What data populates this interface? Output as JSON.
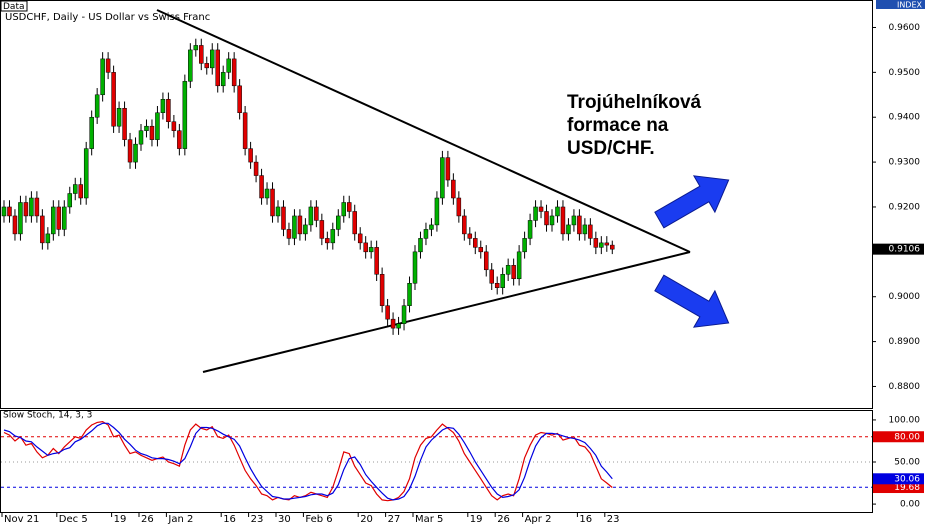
{
  "header": {
    "badge": "Data",
    "index_label": "INDEX"
  },
  "annotation": [
    "Trojúhelníková",
    "formace na",
    "USD/CHF."
  ],
  "chart_data": [
    {
      "type": "candlestick",
      "title": "USDCHF, Daily - US Dollar vs Swiss Franc",
      "up_color": "#00b000",
      "down_color": "#e00000",
      "ylim": [
        0.8752,
        0.9659
      ],
      "yticks": [
        {
          "value": 0.88,
          "label": "0.8800"
        },
        {
          "value": 0.89,
          "label": "0.8900"
        },
        {
          "value": 0.9,
          "label": "0.9000"
        },
        {
          "value": 0.91,
          "label": "0.9100"
        },
        {
          "value": 0.92,
          "label": "0.9200"
        },
        {
          "value": 0.93,
          "label": "0.9300"
        },
        {
          "value": 0.94,
          "label": "0.9400"
        },
        {
          "value": 0.95,
          "label": "0.9500"
        },
        {
          "value": 0.96,
          "label": "0.9600"
        }
      ],
      "open": [
        0.918,
        0.92,
        0.918,
        0.914,
        0.921,
        0.918,
        0.922,
        0.918,
        0.912,
        0.914,
        0.92,
        0.915,
        0.92,
        0.923,
        0.925,
        0.922,
        0.933,
        0.94,
        0.945,
        0.953,
        0.95,
        0.938,
        0.942,
        0.935,
        0.93,
        0.934,
        0.937,
        0.938,
        0.935,
        0.941,
        0.944,
        0.939,
        0.937,
        0.933,
        0.948,
        0.955,
        0.956,
        0.952,
        0.951,
        0.955,
        0.947,
        0.95,
        0.953,
        0.947,
        0.941,
        0.933,
        0.93,
        0.927,
        0.922,
        0.924,
        0.918,
        0.92,
        0.915,
        0.913,
        0.918,
        0.914,
        0.916,
        0.92,
        0.917,
        0.913,
        0.912,
        0.915,
        0.918,
        0.921,
        0.919,
        0.914,
        0.912,
        0.91,
        0.911,
        0.905,
        0.898,
        0.895,
        0.893,
        0.894,
        0.898,
        0.903,
        0.91,
        0.913,
        0.915,
        0.916,
        0.922,
        0.931,
        0.926,
        0.922,
        0.918,
        0.914,
        0.913,
        0.911,
        0.91,
        0.906,
        0.903,
        0.902,
        0.905,
        0.907,
        0.904,
        0.91,
        0.913,
        0.917,
        0.92,
        0.919,
        0.916,
        0.918,
        0.92,
        0.914,
        0.916,
        0.918,
        0.914,
        0.916,
        0.913,
        0.911,
        0.912,
        0.9115
      ],
      "high": [
        0.9215,
        0.9215,
        0.9195,
        0.9225,
        0.9225,
        0.9235,
        0.9235,
        0.9195,
        0.9155,
        0.9215,
        0.9215,
        0.9215,
        0.9245,
        0.9265,
        0.9265,
        0.9345,
        0.9415,
        0.9465,
        0.9545,
        0.9545,
        0.9515,
        0.9435,
        0.9435,
        0.9365,
        0.9355,
        0.9385,
        0.9395,
        0.9395,
        0.9425,
        0.9455,
        0.9455,
        0.9405,
        0.9385,
        0.9495,
        0.9565,
        0.9575,
        0.9575,
        0.9535,
        0.9565,
        0.9565,
        0.9515,
        0.9545,
        0.9545,
        0.9485,
        0.9425,
        0.9345,
        0.9315,
        0.9285,
        0.9255,
        0.9255,
        0.9215,
        0.9215,
        0.9165,
        0.9195,
        0.9195,
        0.9175,
        0.9215,
        0.9215,
        0.9185,
        0.9145,
        0.9165,
        0.9195,
        0.9225,
        0.9225,
        0.9205,
        0.9155,
        0.9135,
        0.9125,
        0.9125,
        0.9065,
        0.8995,
        0.8965,
        0.8955,
        0.8995,
        0.9045,
        0.9115,
        0.9145,
        0.9165,
        0.9175,
        0.9235,
        0.9325,
        0.9325,
        0.9275,
        0.9235,
        0.9195,
        0.9155,
        0.9145,
        0.9125,
        0.9115,
        0.9075,
        0.9045,
        0.9065,
        0.9085,
        0.9085,
        0.9115,
        0.9145,
        0.9185,
        0.9215,
        0.9215,
        0.9205,
        0.9195,
        0.9215,
        0.9215,
        0.9175,
        0.9195,
        0.9195,
        0.9175,
        0.9175,
        0.9145,
        0.9135,
        0.9135,
        0.9125
      ],
      "low": [
        0.9165,
        0.9165,
        0.9125,
        0.9125,
        0.9165,
        0.9165,
        0.9165,
        0.9105,
        0.9105,
        0.9125,
        0.9135,
        0.9135,
        0.9185,
        0.9215,
        0.9205,
        0.9205,
        0.9315,
        0.9385,
        0.9435,
        0.9485,
        0.9365,
        0.9365,
        0.9335,
        0.9285,
        0.9285,
        0.9325,
        0.9355,
        0.9335,
        0.9335,
        0.9395,
        0.9375,
        0.9355,
        0.9315,
        0.9315,
        0.9465,
        0.9535,
        0.9505,
        0.9495,
        0.9495,
        0.9455,
        0.9455,
        0.9485,
        0.9455,
        0.9395,
        0.9315,
        0.9285,
        0.9255,
        0.9205,
        0.9205,
        0.9165,
        0.9165,
        0.9135,
        0.9115,
        0.9115,
        0.9125,
        0.9125,
        0.9145,
        0.9155,
        0.9115,
        0.9105,
        0.9105,
        0.9135,
        0.9165,
        0.9175,
        0.9125,
        0.9105,
        0.9085,
        0.9085,
        0.9035,
        0.8965,
        0.8935,
        0.8915,
        0.8915,
        0.8925,
        0.8965,
        0.9015,
        0.9085,
        0.9115,
        0.9135,
        0.9145,
        0.9205,
        0.9245,
        0.9205,
        0.9165,
        0.9125,
        0.9115,
        0.9095,
        0.9085,
        0.9045,
        0.9015,
        0.9005,
        0.9005,
        0.9035,
        0.9025,
        0.9025,
        0.9085,
        0.9115,
        0.9155,
        0.9175,
        0.9145,
        0.9145,
        0.9165,
        0.9125,
        0.9125,
        0.9145,
        0.9125,
        0.9125,
        0.9115,
        0.9095,
        0.9095,
        0.91,
        0.9095
      ],
      "close": [
        0.92,
        0.918,
        0.914,
        0.921,
        0.918,
        0.922,
        0.918,
        0.912,
        0.914,
        0.92,
        0.915,
        0.92,
        0.923,
        0.925,
        0.922,
        0.933,
        0.94,
        0.945,
        0.953,
        0.95,
        0.938,
        0.942,
        0.935,
        0.93,
        0.934,
        0.937,
        0.938,
        0.935,
        0.941,
        0.944,
        0.939,
        0.937,
        0.933,
        0.948,
        0.955,
        0.956,
        0.952,
        0.951,
        0.955,
        0.947,
        0.95,
        0.953,
        0.947,
        0.941,
        0.933,
        0.93,
        0.927,
        0.922,
        0.924,
        0.918,
        0.92,
        0.915,
        0.913,
        0.918,
        0.914,
        0.916,
        0.92,
        0.917,
        0.913,
        0.912,
        0.915,
        0.918,
        0.921,
        0.919,
        0.914,
        0.912,
        0.91,
        0.911,
        0.905,
        0.898,
        0.895,
        0.893,
        0.894,
        0.898,
        0.903,
        0.91,
        0.913,
        0.915,
        0.916,
        0.922,
        0.931,
        0.926,
        0.922,
        0.918,
        0.914,
        0.913,
        0.911,
        0.91,
        0.906,
        0.903,
        0.902,
        0.905,
        0.907,
        0.904,
        0.91,
        0.913,
        0.917,
        0.92,
        0.919,
        0.916,
        0.918,
        0.92,
        0.914,
        0.916,
        0.918,
        0.914,
        0.916,
        0.913,
        0.911,
        0.912,
        0.9115,
        0.9106
      ]
    },
    {
      "type": "line",
      "title": "Slow Stoch, 14, 3, 3",
      "categories": [
        "Nov 21",
        null,
        null,
        null,
        null,
        null,
        null,
        null,
        null,
        null,
        "Dec 5",
        null,
        null,
        null,
        null,
        null,
        null,
        null,
        null,
        null,
        "19",
        null,
        null,
        null,
        null,
        "26",
        null,
        null,
        null,
        null,
        "Jan 2",
        null,
        null,
        null,
        null,
        null,
        null,
        null,
        null,
        null,
        "16",
        null,
        null,
        null,
        null,
        "23",
        null,
        null,
        null,
        null,
        "30",
        null,
        null,
        null,
        null,
        "Feb 6",
        null,
        null,
        null,
        null,
        null,
        null,
        null,
        null,
        null,
        "20",
        null,
        null,
        null,
        null,
        "27",
        null,
        null,
        null,
        null,
        "Mar 5",
        null,
        null,
        null,
        null,
        null,
        null,
        null,
        null,
        null,
        "19",
        null,
        null,
        null,
        null,
        "26",
        null,
        null,
        null,
        null,
        "Apr 2",
        null,
        null,
        null,
        null,
        null,
        null,
        null,
        null,
        null,
        "16",
        null,
        null,
        null,
        null,
        "23",
        null
      ],
      "ylim": [
        -9.4,
        110.6
      ],
      "yticks": [
        {
          "value": 0,
          "label": "0.00"
        },
        {
          "value": 50,
          "label": "50.00"
        },
        {
          "value": 100,
          "label": "100.00"
        }
      ],
      "levels": [
        {
          "value": 80,
          "label": "80.00",
          "color": "#e00000"
        },
        {
          "value": 20,
          "color": "#0000e0"
        }
      ],
      "series": [
        {
          "color": "#e00000",
          "values": [
            85,
            82,
            75,
            80,
            70,
            72,
            62,
            55,
            58,
            66,
            60,
            68,
            74,
            80,
            78,
            88,
            94,
            97,
            98,
            94,
            80,
            82,
            70,
            60,
            62,
            58,
            55,
            52,
            54,
            56,
            50,
            48,
            45,
            70,
            88,
            95,
            90,
            88,
            92,
            80,
            78,
            82,
            70,
            55,
            40,
            30,
            22,
            12,
            10,
            5,
            8,
            6,
            5,
            10,
            8,
            10,
            14,
            12,
            10,
            8,
            20,
            40,
            62,
            60,
            45,
            35,
            25,
            22,
            12,
            5,
            4,
            5,
            8,
            15,
            30,
            55,
            70,
            78,
            80,
            88,
            95,
            90,
            85,
            75,
            60,
            50,
            40,
            30,
            20,
            10,
            5,
            10,
            12,
            10,
            30,
            55,
            70,
            82,
            85,
            84,
            82,
            84,
            76,
            78,
            80,
            70,
            68,
            60,
            45,
            30,
            25,
            19.68
          ]
        },
        {
          "color": "#0000e0",
          "values": [
            88,
            86,
            81,
            79,
            75,
            74,
            68,
            63,
            58,
            60,
            61,
            65,
            67,
            74,
            77,
            82,
            87,
            93,
            96,
            96,
            91,
            85,
            77,
            71,
            64,
            60,
            58,
            55,
            54,
            54,
            53,
            51,
            48,
            54,
            68,
            84,
            91,
            91,
            90,
            87,
            83,
            80,
            77,
            69,
            55,
            42,
            31,
            21,
            15,
            9,
            8,
            6,
            6,
            7,
            8,
            9,
            11,
            12,
            12,
            10,
            13,
            23,
            41,
            54,
            56,
            47,
            35,
            27,
            20,
            13,
            7,
            5,
            6,
            9,
            18,
            33,
            52,
            68,
            76,
            82,
            88,
            91,
            90,
            83,
            73,
            62,
            50,
            40,
            30,
            20,
            12,
            8,
            9,
            11,
            17,
            32,
            52,
            69,
            79,
            84,
            84,
            83,
            81,
            79,
            78,
            76,
            73,
            66,
            58,
            45,
            38,
            30.06
          ]
        }
      ]
    }
  ]
}
